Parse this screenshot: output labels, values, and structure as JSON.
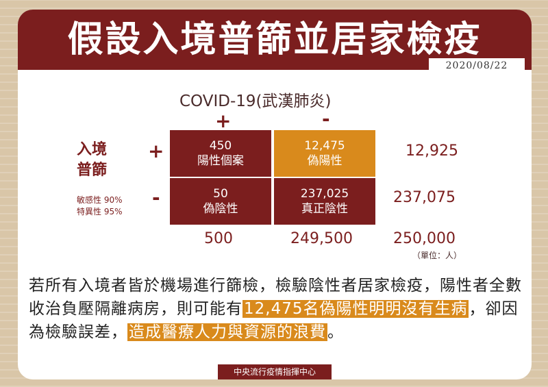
{
  "title": "假設入境普篩並居家檢疫",
  "date": "2020/08/22",
  "test_label": "COVID-19(武漢肺炎)",
  "col_plus": "+",
  "col_minus": "-",
  "row_label_line1": "入境",
  "row_label_line2": "普篩",
  "row_plus": "+",
  "row_minus": "-",
  "sensitivity": "敏感性 90%",
  "specificity": "特異性 95%",
  "cells": {
    "tp_value": "450",
    "tp_label": "陽性個案",
    "fp_value": "12,475",
    "fp_label": "偽陽性",
    "fn_value": "50",
    "fn_label": "偽陰性",
    "tn_value": "237,025",
    "tn_label": "真正陰性"
  },
  "row_totals": [
    "12,925",
    "237,075"
  ],
  "col_totals": [
    "500",
    "249,500"
  ],
  "grand_total": "250,000",
  "unit": "（單位：人）",
  "paragraph": {
    "part1": "若所有入境者皆於機場進行篩檢，檢驗陰性者居家檢疫，陽性者全數收治負壓隔離病房，則可能有",
    "highlight1": "12,475名偽陽性明明沒有生病",
    "part2": "，卻因為檢驗誤差，",
    "highlight2": "造成醫療人力與資源的浪費",
    "part3": "。"
  },
  "footer": "中央流行疫情指揮中心",
  "colors": {
    "brand": "#7b1e1e",
    "accent": "#d98a1c"
  }
}
